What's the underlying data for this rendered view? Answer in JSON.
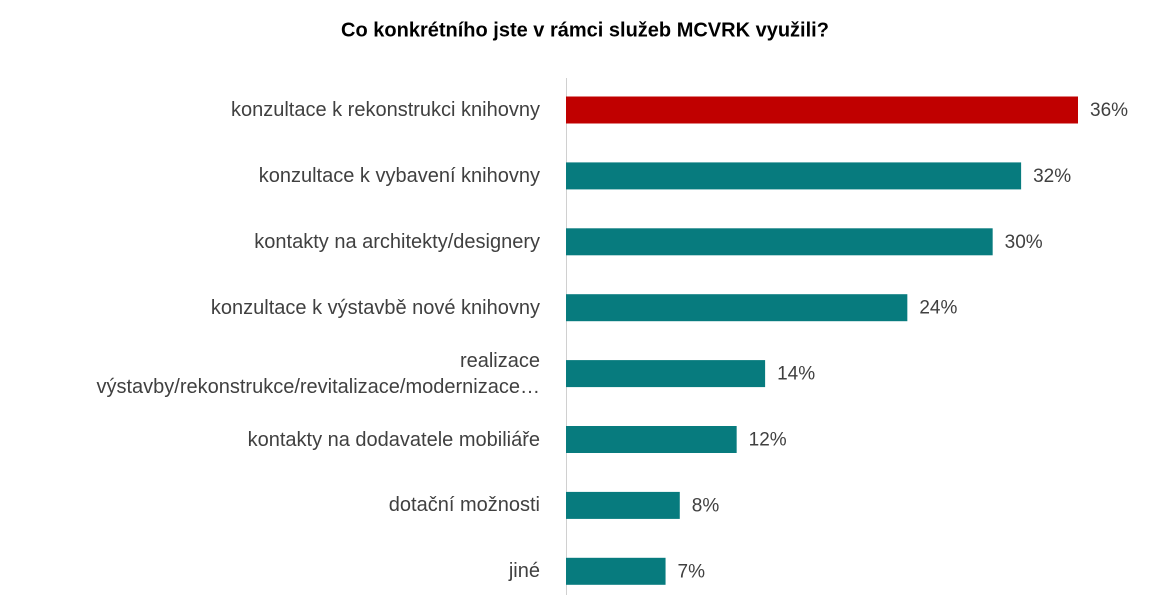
{
  "chart_data": {
    "type": "bar",
    "orientation": "horizontal",
    "title": "Co konkrétního jste v rámci služeb MCVRK využili?",
    "categories": [
      "konzultace k rekonstrukci knihovny",
      "konzultace k vybavení knihovny",
      "kontakty na architekty/designery",
      "konzultace k výstavbě nové knihovny",
      "realizace\nvýstavby/rekonstrukce/revitalizace/modernizace…",
      "kontakty na dodavatele mobiliáře",
      "dotační možnosti",
      "jiné"
    ],
    "values": [
      36,
      32,
      30,
      24,
      14,
      12,
      8,
      7
    ],
    "value_labels": [
      "36%",
      "32%",
      "30%",
      "24%",
      "14%",
      "12%",
      "8%",
      "7%"
    ],
    "colors": [
      "#c00000",
      "#077b7e",
      "#077b7e",
      "#077b7e",
      "#077b7e",
      "#077b7e",
      "#077b7e",
      "#077b7e"
    ]
  }
}
